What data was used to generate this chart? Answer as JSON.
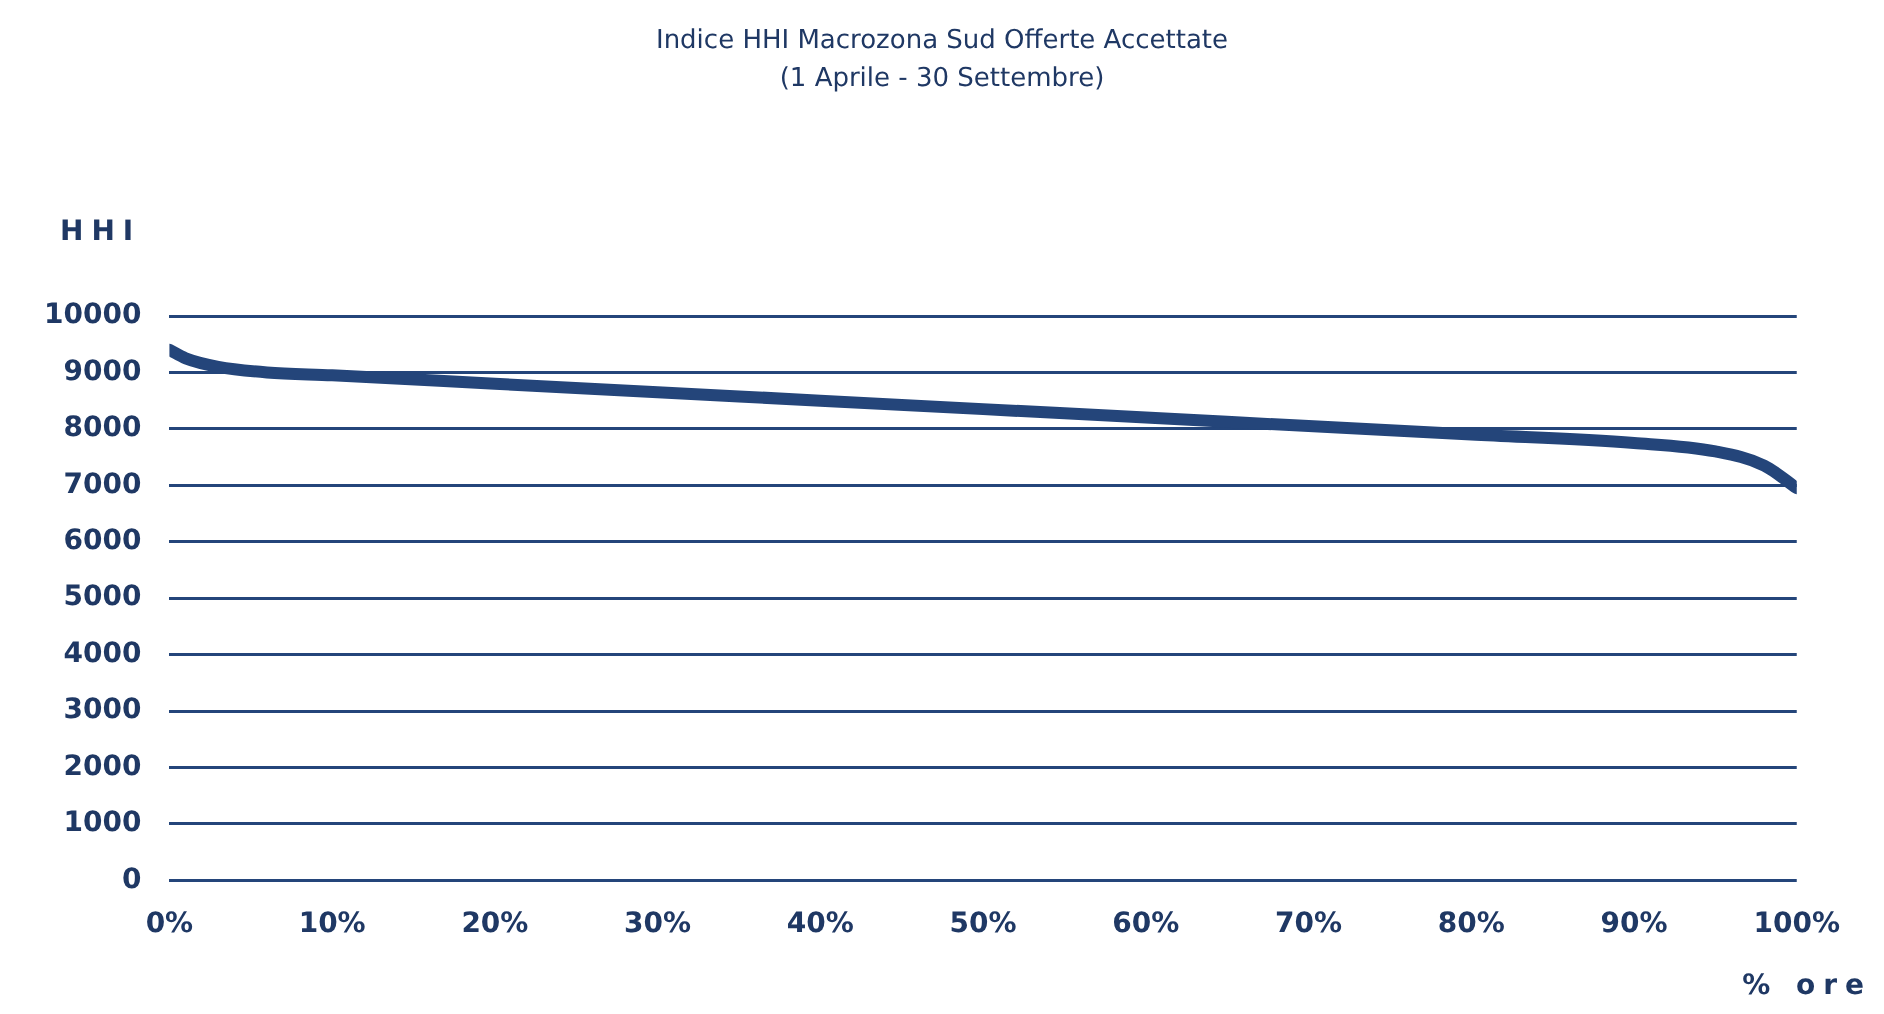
{
  "chart_data": {
    "type": "line",
    "title": "Indice HHI Macrozona Sud Offerte Accettate",
    "subtitle": "(1 Aprile - 30 Settembre)",
    "xlabel": "% ore",
    "ylabel": "HHI",
    "series": [
      {
        "color": "#24457a",
        "x": [
          0,
          1,
          3,
          6,
          10,
          20,
          30,
          40,
          50,
          60,
          70,
          80,
          90,
          95,
          98,
          100
        ],
        "values": [
          9400,
          9250,
          9100,
          9000,
          8950,
          8800,
          8650,
          8500,
          8350,
          8200,
          8050,
          7900,
          7750,
          7600,
          7350,
          6950
        ]
      }
    ],
    "xlim": [
      0,
      100
    ],
    "xticks": [
      {
        "value": 0,
        "label": "0%"
      },
      {
        "value": 10,
        "label": "10%"
      },
      {
        "value": 20,
        "label": "20%"
      },
      {
        "value": 30,
        "label": "30%"
      },
      {
        "value": 40,
        "label": "40%"
      },
      {
        "value": 50,
        "label": "50%"
      },
      {
        "value": 60,
        "label": "60%"
      },
      {
        "value": 70,
        "label": "70%"
      },
      {
        "value": 80,
        "label": "80%"
      },
      {
        "value": 90,
        "label": "90%"
      },
      {
        "value": 100,
        "label": "100%"
      }
    ],
    "ylim": [
      0,
      10000
    ],
    "yticks": [
      0,
      1000,
      2000,
      3000,
      4000,
      5000,
      6000,
      7000,
      8000,
      9000,
      10000
    ],
    "grid": "y",
    "legend": false,
    "marker": "none",
    "line_style": "solid"
  }
}
